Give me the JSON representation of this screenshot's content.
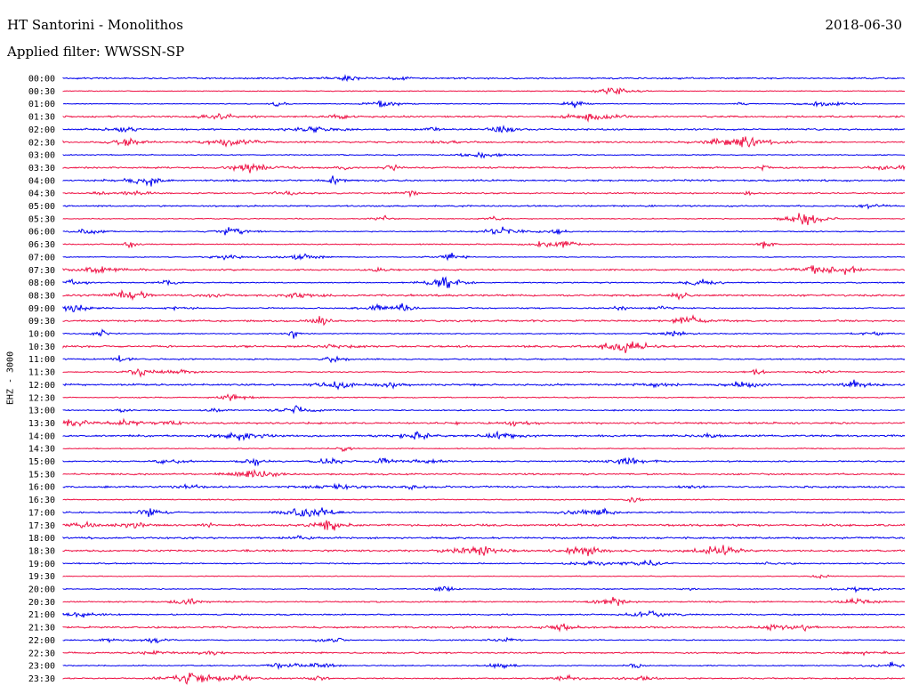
{
  "header": {
    "station": "HT Santorini - Monolithos",
    "date": "2018-06-30",
    "filter": "Applied filter: WWSSN-SP"
  },
  "channel_label": "EHZ - 3000",
  "colors": {
    "trace_a": "#0000ee",
    "trace_b": "#ee1144"
  },
  "chart_data": {
    "type": "line",
    "title": "HT Santorini - Monolithos",
    "subtitle": "Applied filter: WWSSN-SP",
    "ylabel": "EHZ - 3000",
    "date": "2018-06-30",
    "row_labels": [
      "00:00",
      "00:30",
      "01:00",
      "01:30",
      "02:00",
      "02:30",
      "03:00",
      "03:30",
      "04:00",
      "04:30",
      "05:00",
      "05:30",
      "06:00",
      "06:30",
      "07:00",
      "07:30",
      "08:00",
      "08:30",
      "09:00",
      "09:30",
      "10:00",
      "10:30",
      "11:00",
      "11:30",
      "12:00",
      "12:30",
      "13:00",
      "13:30",
      "14:00",
      "14:30",
      "15:00",
      "15:30",
      "16:00",
      "16:30",
      "17:00",
      "17:30",
      "18:00",
      "18:30",
      "19:00",
      "19:30",
      "20:00",
      "20:30",
      "21:00",
      "21:30",
      "22:00",
      "22:30",
      "23:00",
      "23:30"
    ],
    "row_minutes": 30,
    "trace_colors_alternate": [
      "#0000ee",
      "#ee1144"
    ],
    "grid": false,
    "legend": "none"
  }
}
